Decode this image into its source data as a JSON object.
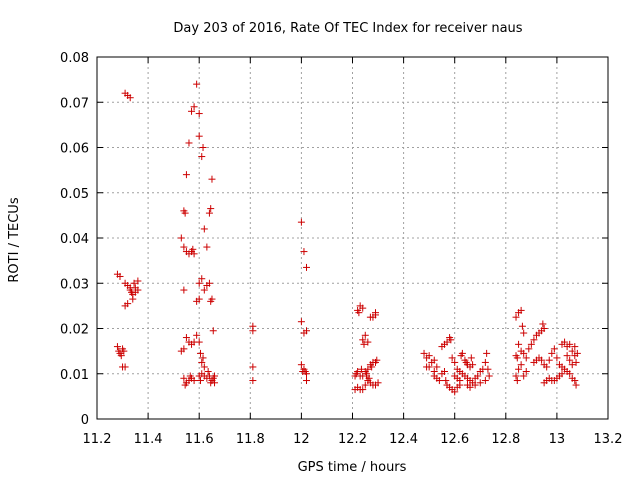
{
  "chart_data": {
    "type": "scatter",
    "title": "Day 203 of 2016, Rate Of TEC Index for receiver naus",
    "xlabel": "GPS time / hours",
    "ylabel": "ROTI / TECUs",
    "xlim": [
      11.2,
      13.2
    ],
    "ylim": [
      0,
      0.08
    ],
    "xticks": [
      "11.2",
      "11.4",
      "11.6",
      "11.8",
      "12",
      "12.2",
      "12.4",
      "12.6",
      "12.8",
      "13",
      "13.2"
    ],
    "yticks": [
      "0",
      "0.01",
      "0.02",
      "0.03",
      "0.04",
      "0.05",
      "0.06",
      "0.07",
      "0.08"
    ],
    "grid": true,
    "marker": "+",
    "color": "#cc0000",
    "series": [
      {
        "name": "ROTI",
        "points": [
          [
            11.28,
            0.032
          ],
          [
            11.29,
            0.0315
          ],
          [
            11.28,
            0.016
          ],
          [
            11.285,
            0.015
          ],
          [
            11.29,
            0.0145
          ],
          [
            11.3,
            0.0155
          ],
          [
            11.295,
            0.014
          ],
          [
            11.305,
            0.015
          ],
          [
            11.3,
            0.0115
          ],
          [
            11.31,
            0.0115
          ],
          [
            11.31,
            0.072
          ],
          [
            11.32,
            0.0715
          ],
          [
            11.33,
            0.071
          ],
          [
            11.31,
            0.025
          ],
          [
            11.32,
            0.0255
          ],
          [
            11.31,
            0.03
          ],
          [
            11.32,
            0.0295
          ],
          [
            11.33,
            0.029
          ],
          [
            11.335,
            0.028
          ],
          [
            11.34,
            0.0275
          ],
          [
            11.345,
            0.03
          ],
          [
            11.35,
            0.028
          ],
          [
            11.35,
            0.029
          ],
          [
            11.36,
            0.0305
          ],
          [
            11.36,
            0.0285
          ],
          [
            11.34,
            0.0265
          ],
          [
            11.33,
            0.0285
          ],
          [
            11.53,
            0.04
          ],
          [
            11.54,
            0.046
          ],
          [
            11.545,
            0.0455
          ],
          [
            11.54,
            0.038
          ],
          [
            11.55,
            0.037
          ],
          [
            11.56,
            0.0365
          ],
          [
            11.57,
            0.037
          ],
          [
            11.575,
            0.0375
          ],
          [
            11.58,
            0.0365
          ],
          [
            11.55,
            0.054
          ],
          [
            11.56,
            0.061
          ],
          [
            11.54,
            0.0285
          ],
          [
            11.53,
            0.015
          ],
          [
            11.54,
            0.0155
          ],
          [
            11.55,
            0.018
          ],
          [
            11.56,
            0.017
          ],
          [
            11.57,
            0.0165
          ],
          [
            11.58,
            0.017
          ],
          [
            11.54,
            0.009
          ],
          [
            11.545,
            0.0075
          ],
          [
            11.55,
            0.008
          ],
          [
            11.56,
            0.0085
          ],
          [
            11.565,
            0.0095
          ],
          [
            11.57,
            0.009
          ],
          [
            11.58,
            0.0085
          ],
          [
            11.57,
            0.068
          ],
          [
            11.58,
            0.069
          ],
          [
            11.59,
            0.074
          ],
          [
            11.6,
            0.0675
          ],
          [
            11.6,
            0.0625
          ],
          [
            11.61,
            0.058
          ],
          [
            11.615,
            0.06
          ],
          [
            11.59,
            0.026
          ],
          [
            11.6,
            0.0265
          ],
          [
            11.6,
            0.03
          ],
          [
            11.61,
            0.031
          ],
          [
            11.62,
            0.042
          ],
          [
            11.63,
            0.038
          ],
          [
            11.64,
            0.0455
          ],
          [
            11.645,
            0.0465
          ],
          [
            11.65,
            0.053
          ],
          [
            11.62,
            0.0285
          ],
          [
            11.63,
            0.0295
          ],
          [
            11.64,
            0.03
          ],
          [
            11.645,
            0.026
          ],
          [
            11.65,
            0.0265
          ],
          [
            11.655,
            0.0195
          ],
          [
            11.59,
            0.0185
          ],
          [
            11.6,
            0.017
          ],
          [
            11.605,
            0.0145
          ],
          [
            11.61,
            0.0125
          ],
          [
            11.615,
            0.0135
          ],
          [
            11.62,
            0.0115
          ],
          [
            11.6,
            0.0095
          ],
          [
            11.605,
            0.0085
          ],
          [
            11.61,
            0.01
          ],
          [
            11.62,
            0.0095
          ],
          [
            11.63,
            0.009
          ],
          [
            11.635,
            0.0105
          ],
          [
            11.64,
            0.0095
          ],
          [
            11.645,
            0.008
          ],
          [
            11.65,
            0.0085
          ],
          [
            11.655,
            0.009
          ],
          [
            11.66,
            0.0095
          ],
          [
            11.66,
            0.008
          ],
          [
            11.81,
            0.0205
          ],
          [
            11.81,
            0.0195
          ],
          [
            11.81,
            0.0115
          ],
          [
            11.81,
            0.0085
          ],
          [
            12.0,
            0.0435
          ],
          [
            12.01,
            0.037
          ],
          [
            12.02,
            0.0335
          ],
          [
            12.0,
            0.0215
          ],
          [
            12.01,
            0.019
          ],
          [
            12.02,
            0.0195
          ],
          [
            12.0,
            0.012
          ],
          [
            12.005,
            0.0105
          ],
          [
            12.01,
            0.011
          ],
          [
            12.015,
            0.0105
          ],
          [
            12.02,
            0.01
          ],
          [
            12.02,
            0.0085
          ],
          [
            12.22,
            0.024
          ],
          [
            12.225,
            0.0235
          ],
          [
            12.23,
            0.025
          ],
          [
            12.24,
            0.0245
          ],
          [
            12.24,
            0.0175
          ],
          [
            12.25,
            0.0185
          ],
          [
            12.245,
            0.0165
          ],
          [
            12.26,
            0.017
          ],
          [
            12.27,
            0.0225
          ],
          [
            12.28,
            0.0225
          ],
          [
            12.29,
            0.023
          ],
          [
            12.29,
            0.0235
          ],
          [
            12.21,
            0.0095
          ],
          [
            12.215,
            0.01
          ],
          [
            12.22,
            0.0105
          ],
          [
            12.23,
            0.0095
          ],
          [
            12.235,
            0.011
          ],
          [
            12.24,
            0.0095
          ],
          [
            12.25,
            0.0105
          ],
          [
            12.255,
            0.01
          ],
          [
            12.26,
            0.011
          ],
          [
            12.27,
            0.012
          ],
          [
            12.275,
            0.0115
          ],
          [
            12.28,
            0.0125
          ],
          [
            12.29,
            0.0125
          ],
          [
            12.295,
            0.013
          ],
          [
            12.21,
            0.0065
          ],
          [
            12.22,
            0.007
          ],
          [
            12.23,
            0.0065
          ],
          [
            12.24,
            0.0065
          ],
          [
            12.25,
            0.0075
          ],
          [
            12.26,
            0.0085
          ],
          [
            12.27,
            0.008
          ],
          [
            12.28,
            0.0075
          ],
          [
            12.29,
            0.0075
          ],
          [
            12.3,
            0.008
          ],
          [
            12.255,
            0.0095
          ],
          [
            12.265,
            0.009
          ],
          [
            12.48,
            0.0145
          ],
          [
            12.49,
            0.0135
          ],
          [
            12.5,
            0.014
          ],
          [
            12.51,
            0.0125
          ],
          [
            12.52,
            0.013
          ],
          [
            12.5,
            0.0115
          ],
          [
            12.49,
            0.0115
          ],
          [
            12.53,
            0.0115
          ],
          [
            12.52,
            0.0105
          ],
          [
            12.55,
            0.016
          ],
          [
            12.56,
            0.0165
          ],
          [
            12.57,
            0.017
          ],
          [
            12.58,
            0.018
          ],
          [
            12.585,
            0.0175
          ],
          [
            12.52,
            0.0095
          ],
          [
            12.53,
            0.009
          ],
          [
            12.54,
            0.0085
          ],
          [
            12.55,
            0.01
          ],
          [
            12.56,
            0.0105
          ],
          [
            12.565,
            0.0085
          ],
          [
            12.57,
            0.0075
          ],
          [
            12.58,
            0.007
          ],
          [
            12.59,
            0.0065
          ],
          [
            12.6,
            0.006
          ],
          [
            12.61,
            0.007
          ],
          [
            12.62,
            0.0075
          ],
          [
            12.59,
            0.0135
          ],
          [
            12.6,
            0.0125
          ],
          [
            12.61,
            0.011
          ],
          [
            12.62,
            0.0105
          ],
          [
            12.625,
            0.014
          ],
          [
            12.63,
            0.0145
          ],
          [
            12.64,
            0.013
          ],
          [
            12.645,
            0.0125
          ],
          [
            12.65,
            0.012
          ],
          [
            12.66,
            0.0115
          ],
          [
            12.665,
            0.0135
          ],
          [
            12.67,
            0.012
          ],
          [
            12.6,
            0.0095
          ],
          [
            12.61,
            0.009
          ],
          [
            12.62,
            0.0085
          ],
          [
            12.63,
            0.01
          ],
          [
            12.64,
            0.0095
          ],
          [
            12.65,
            0.009
          ],
          [
            12.66,
            0.0085
          ],
          [
            12.67,
            0.008
          ],
          [
            12.68,
            0.009
          ],
          [
            12.69,
            0.0095
          ],
          [
            12.7,
            0.0105
          ],
          [
            12.71,
            0.011
          ],
          [
            12.72,
            0.0125
          ],
          [
            12.725,
            0.0145
          ],
          [
            12.65,
            0.0075
          ],
          [
            12.66,
            0.007
          ],
          [
            12.68,
            0.0075
          ],
          [
            12.7,
            0.008
          ],
          [
            12.72,
            0.0085
          ],
          [
            12.73,
            0.011
          ],
          [
            12.735,
            0.0095
          ],
          [
            12.84,
            0.0225
          ],
          [
            12.85,
            0.0235
          ],
          [
            12.86,
            0.024
          ],
          [
            12.865,
            0.0205
          ],
          [
            12.87,
            0.019
          ],
          [
            12.85,
            0.0165
          ],
          [
            12.84,
            0.014
          ],
          [
            12.845,
            0.0135
          ],
          [
            12.86,
            0.015
          ],
          [
            12.87,
            0.0145
          ],
          [
            12.88,
            0.0135
          ],
          [
            12.84,
            0.0095
          ],
          [
            12.845,
            0.0085
          ],
          [
            12.85,
            0.011
          ],
          [
            12.86,
            0.012
          ],
          [
            12.87,
            0.0095
          ],
          [
            12.88,
            0.0105
          ],
          [
            12.89,
            0.0155
          ],
          [
            12.9,
            0.0165
          ],
          [
            12.91,
            0.0175
          ],
          [
            12.92,
            0.0185
          ],
          [
            12.93,
            0.019
          ],
          [
            12.94,
            0.0195
          ],
          [
            12.95,
            0.02
          ],
          [
            12.945,
            0.021
          ],
          [
            12.91,
            0.0125
          ],
          [
            12.92,
            0.013
          ],
          [
            12.93,
            0.0135
          ],
          [
            12.94,
            0.013
          ],
          [
            12.95,
            0.012
          ],
          [
            12.96,
            0.0115
          ],
          [
            12.97,
            0.013
          ],
          [
            12.98,
            0.0145
          ],
          [
            12.99,
            0.0155
          ],
          [
            13.0,
            0.0135
          ],
          [
            13.01,
            0.012
          ],
          [
            13.02,
            0.0115
          ],
          [
            12.95,
            0.008
          ],
          [
            12.96,
            0.0085
          ],
          [
            12.97,
            0.009
          ],
          [
            12.98,
            0.0085
          ],
          [
            12.99,
            0.0085
          ],
          [
            13.0,
            0.009
          ],
          [
            13.01,
            0.0095
          ],
          [
            13.02,
            0.01
          ],
          [
            13.03,
            0.011
          ],
          [
            13.04,
            0.0105
          ],
          [
            13.05,
            0.01
          ],
          [
            13.06,
            0.009
          ],
          [
            13.07,
            0.0085
          ],
          [
            13.075,
            0.0075
          ],
          [
            13.02,
            0.0165
          ],
          [
            13.03,
            0.017
          ],
          [
            13.04,
            0.016
          ],
          [
            13.05,
            0.0165
          ],
          [
            13.06,
            0.015
          ],
          [
            13.07,
            0.014
          ],
          [
            13.08,
            0.0145
          ],
          [
            13.07,
            0.016
          ],
          [
            13.04,
            0.014
          ],
          [
            13.05,
            0.013
          ],
          [
            13.06,
            0.012
          ],
          [
            13.075,
            0.0125
          ]
        ]
      }
    ]
  }
}
